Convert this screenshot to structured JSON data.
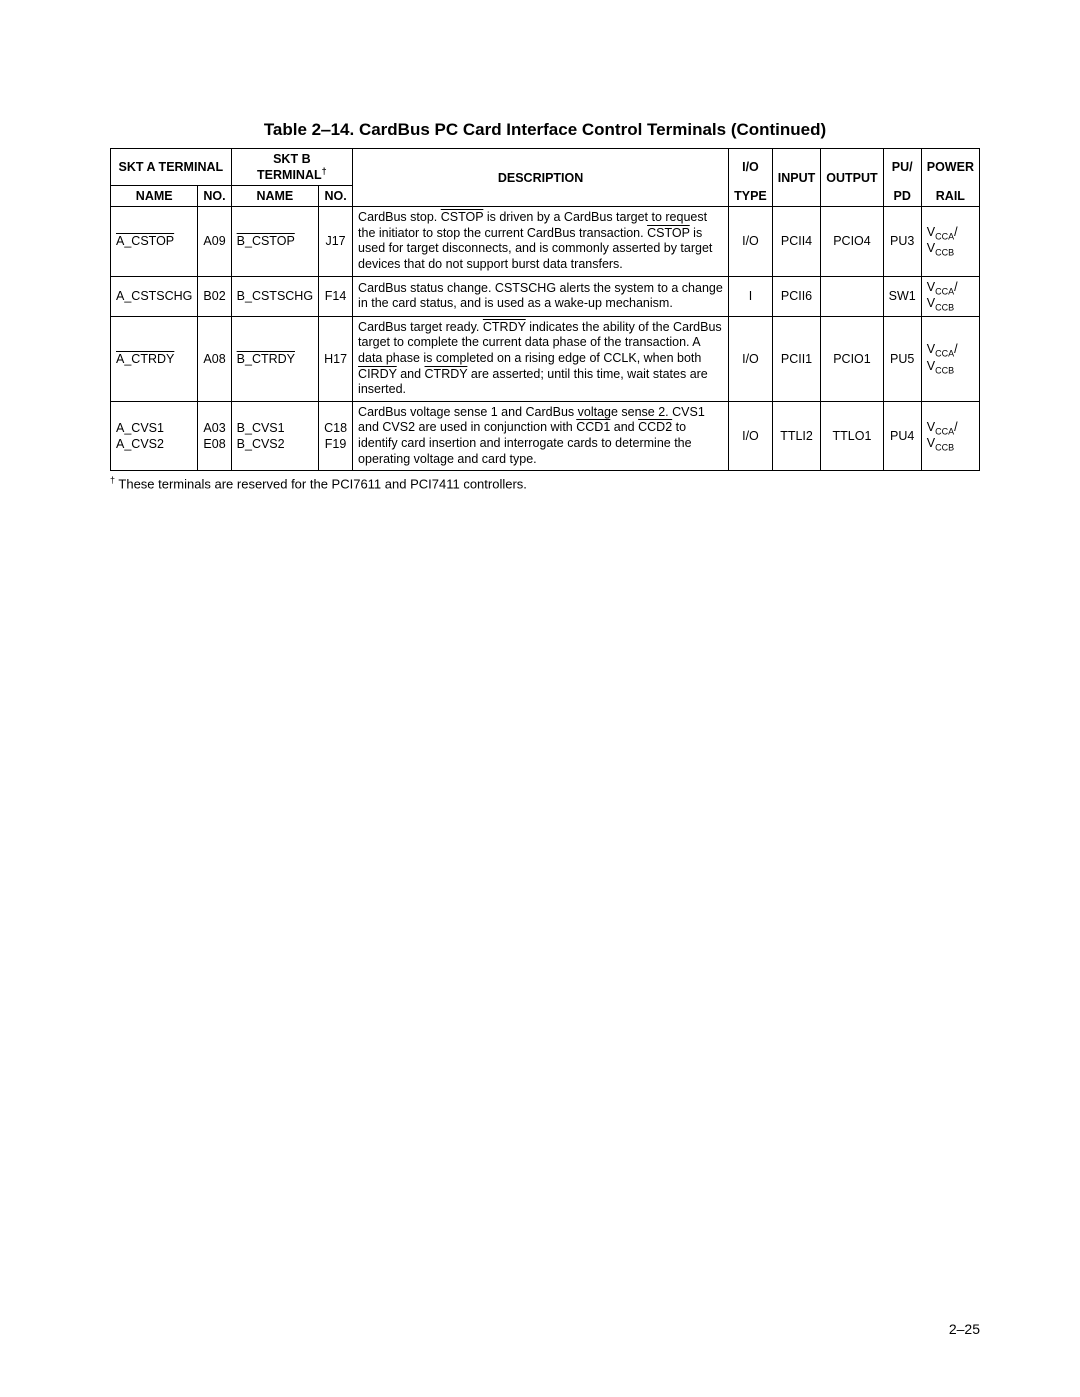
{
  "title": "Table 2‒14.  CardBus PC Card Interface Control Terminals (Continued)",
  "headers": {
    "sktA": "SKT A TERMINAL",
    "sktB_prefix": "SKT B TERMINAL",
    "name": "NAME",
    "no": "NO.",
    "description": "DESCRIPTION",
    "ioType1": "I/O",
    "ioType2": "TYPE",
    "input": "INPUT",
    "output": "OUTPUT",
    "pupd1": "PU/",
    "pupd2": "PD",
    "power1": "POWER",
    "power2": "RAIL"
  },
  "rows": {
    "r1": {
      "sktA_no": "A09",
      "sktB_no": "J17",
      "io": "I/O",
      "input": "PCII4",
      "output": "PCIO4",
      "pupd": "PU3"
    },
    "r2": {
      "sktA_name": "A_CSTSCHG",
      "sktA_no": "B02",
      "sktB_name": "B_CSTSCHG",
      "sktB_no": "F14",
      "desc": "CardBus status change. CSTSCHG alerts the system to a change in the card status, and is used as a wake-up mechanism.",
      "io": "I",
      "input": "PCII6",
      "output": "",
      "pupd": "SW1"
    },
    "r3": {
      "sktA_no": "A08",
      "sktB_no": "H17",
      "io": "I/O",
      "input": "PCII1",
      "output": "PCIO1",
      "pupd": "PU5"
    },
    "r4": {
      "sktA_name1": "A_CVS1",
      "sktA_name2": "A_CVS2",
      "sktA_no1": "A03",
      "sktA_no2": "E08",
      "sktB_name1": "B_CVS1",
      "sktB_name2": "B_CVS2",
      "sktB_no1": "C18",
      "sktB_no2": "F19",
      "io": "I/O",
      "input": "TTLI2",
      "output": "TTLO1",
      "pupd": "PU4"
    }
  },
  "footnote_prefix": "†",
  "footnote_text": " These terminals are reserved for the PCI7611 and PCI7411 controllers.",
  "pagenum": "2‒25",
  "text": {
    "a_cstop_ov": "A_CSTOP",
    "b_cstop_ov": "B_CSTOP",
    "a_ctrdy_ov": "A_CTRDY",
    "b_ctrdy_ov": "B_CTRDY",
    "cstop_ov": "CSTOP",
    "ctrdy_ov": "CTRDY",
    "cirdy_ov": "CIRDY",
    "ccd1_ov": "CCD1",
    "ccd2_ov": "CCD2",
    "vcca": "V",
    "cca_sub": "CCA",
    "vccb": "V",
    "ccb_sub": "CCB",
    "slash": "/",
    "dagger": "†",
    "desc1_p1": "CardBus stop. ",
    "desc1_p2": " is driven by a CardBus target to request the initiator to stop the current CardBus transaction. ",
    "desc1_p3": " is used for target disconnects, and is commonly asserted by target devices that do not support burst data transfers.",
    "desc3_p1": "CardBus target ready. ",
    "desc3_p2": " indicates the ability of the CardBus target to complete the current data phase of the transaction. A data phase is completed on a rising edge of CCLK, when both ",
    "desc3_p3": " and ",
    "desc3_p4": " are asserted; until this time, wait states are inserted.",
    "desc4_p1": "CardBus voltage sense 1 and CardBus voltage sense 2. CVS1 and CVS2 are used in conjunction with ",
    "desc4_p2": " and ",
    "desc4_p3": " to identify card insertion and interrogate cards to determine the operating voltage and card type."
  }
}
